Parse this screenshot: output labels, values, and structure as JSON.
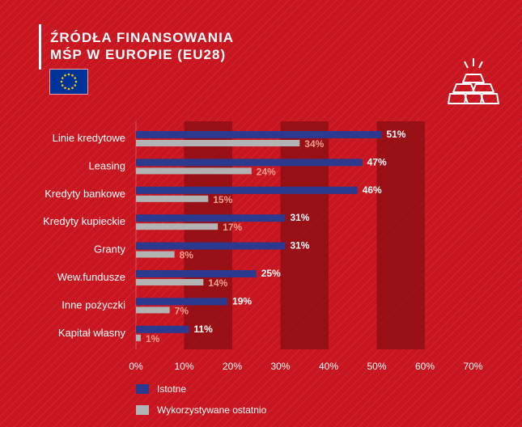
{
  "header": {
    "title_line1": "ŹRÓDŁA FINANSOWANIA",
    "title_line2": "MŚP W EUROPIE (EU28)",
    "flag_icon": "eu-flag-icon",
    "gold_icon": "gold-bars-icon"
  },
  "colors": {
    "background": "#c8151f",
    "istotne": "#2b3a8f",
    "wykorzystywane": "#b3b3b3",
    "istotne_label": "#ffffff",
    "wykorzystywane_label": "#f0a08c",
    "band": "#8a0d14"
  },
  "chart_data": {
    "type": "bar",
    "orientation": "horizontal",
    "categories": [
      "Linie kredytowe",
      "Leasing",
      "Kredyty bankowe",
      "Kredyty kupieckie",
      "Granty",
      "Wew.fundusze",
      "Inne pożyczki",
      "Kapitał własny"
    ],
    "series": [
      {
        "name": "Istotne",
        "values": [
          51,
          47,
          46,
          31,
          31,
          25,
          19,
          11
        ],
        "labels": [
          "51%",
          "47%",
          "46%",
          "31%",
          "31%",
          "25%",
          "19%",
          "11%"
        ]
      },
      {
        "name": "Wykorzystywane ostatnio",
        "values": [
          34,
          24,
          15,
          17,
          8,
          14,
          7,
          1
        ],
        "labels": [
          "34%",
          "24%",
          "15%",
          "17%",
          "8%",
          "14%",
          "7%",
          "1%"
        ]
      }
    ],
    "xlim": [
      0,
      70
    ],
    "x_ticks": [
      "0%",
      "10%",
      "20%",
      "30%",
      "40%",
      "50%",
      "60%",
      "70%"
    ],
    "legend_position": "bottom-left"
  }
}
